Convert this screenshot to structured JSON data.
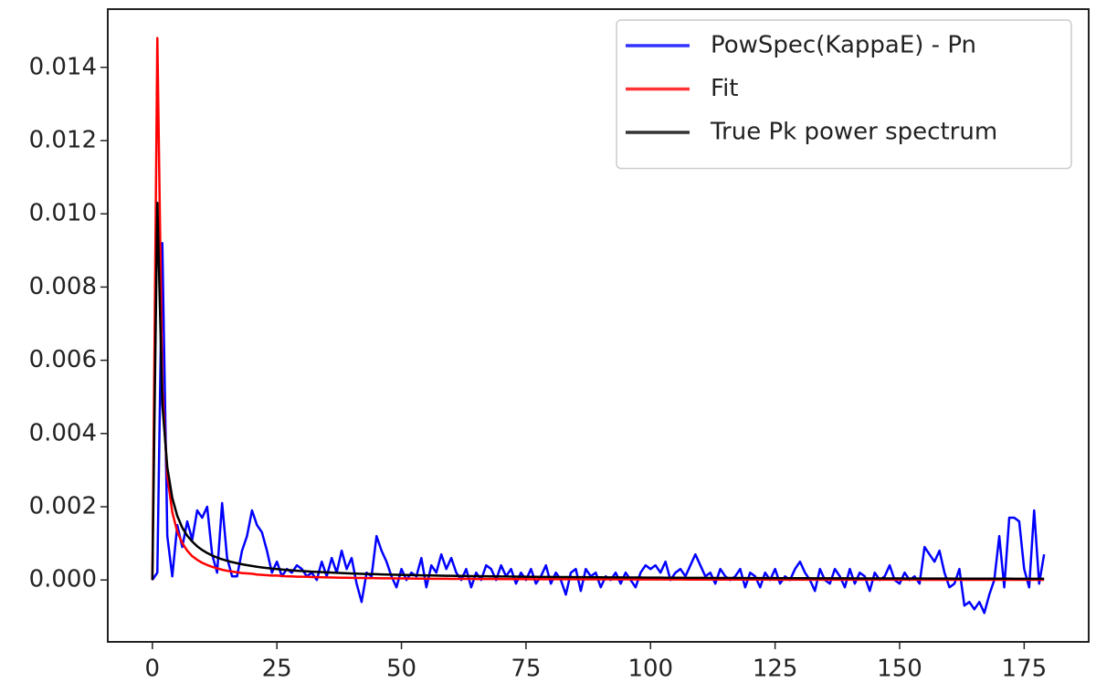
{
  "chart_data": {
    "type": "line",
    "x": [
      0,
      1,
      2,
      3,
      4,
      5,
      6,
      7,
      8,
      9,
      10,
      11,
      12,
      13,
      14,
      15,
      16,
      17,
      18,
      19,
      20,
      21,
      22,
      23,
      24,
      25,
      26,
      27,
      28,
      29,
      30,
      31,
      32,
      33,
      34,
      35,
      36,
      37,
      38,
      39,
      40,
      41,
      42,
      43,
      44,
      45,
      46,
      47,
      48,
      49,
      50,
      51,
      52,
      53,
      54,
      55,
      56,
      57,
      58,
      59,
      60,
      61,
      62,
      63,
      64,
      65,
      66,
      67,
      68,
      69,
      70,
      71,
      72,
      73,
      74,
      75,
      76,
      77,
      78,
      79,
      80,
      81,
      82,
      83,
      84,
      85,
      86,
      87,
      88,
      89,
      90,
      91,
      92,
      93,
      94,
      95,
      96,
      97,
      98,
      99,
      100,
      101,
      102,
      103,
      104,
      105,
      106,
      107,
      108,
      109,
      110,
      111,
      112,
      113,
      114,
      115,
      116,
      117,
      118,
      119,
      120,
      121,
      122,
      123,
      124,
      125,
      126,
      127,
      128,
      129,
      130,
      131,
      132,
      133,
      134,
      135,
      136,
      137,
      138,
      139,
      140,
      141,
      142,
      143,
      144,
      145,
      146,
      147,
      148,
      149,
      150,
      151,
      152,
      153,
      154,
      155,
      156,
      157,
      158,
      159,
      160,
      161,
      162,
      163,
      164,
      165,
      166,
      167,
      168,
      169,
      170,
      171,
      172,
      173,
      174,
      175,
      176,
      177,
      178,
      179
    ],
    "series": [
      {
        "name": "PowSpec(KappaE) - Pn",
        "color": "#0000ff",
        "values": [
          0,
          0.0002,
          0.0092,
          0.0012,
          0.0001,
          0.0015,
          0.0009,
          0.0016,
          0.0011,
          0.0019,
          0.0017,
          0.002,
          0.0007,
          0.0002,
          0.0021,
          0.0006,
          0.0001,
          0.0001,
          0.0008,
          0.0012,
          0.0019,
          0.0015,
          0.0013,
          0.0008,
          0.0002,
          0.0005,
          0.0001,
          0.0003,
          0.0002,
          0.0004,
          0.0003,
          0.0001,
          0.0002,
          0,
          0.0005,
          0.0001,
          0.0006,
          0.0002,
          0.0008,
          0.0003,
          0.0006,
          -0.0001,
          -0.0006,
          0.0002,
          0.0001,
          0.0012,
          0.0008,
          0.0005,
          0.0001,
          -0.0002,
          0.0003,
          0,
          0.0002,
          0.0001,
          0.0006,
          -0.0002,
          0.0004,
          0.0002,
          0.0007,
          0.0003,
          0.0006,
          0.0002,
          0,
          0.0003,
          -0.0002,
          0.0002,
          0,
          0.0004,
          0.0003,
          0,
          0.0004,
          0.0001,
          0.0003,
          -0.0001,
          0.0002,
          0,
          0.0003,
          -0.0001,
          0.0001,
          0.0004,
          -0.0001,
          0.0002,
          0,
          -0.0004,
          0.0002,
          0.0003,
          -0.0003,
          0.0003,
          0.0001,
          0.0002,
          -0.0002,
          0.0001,
          0,
          0.0002,
          -0.0001,
          0.0002,
          0,
          -0.0002,
          0.0002,
          0.0004,
          0.0003,
          0.0004,
          0.0002,
          0.0005,
          0,
          0.0002,
          0.0003,
          0.0001,
          0.0004,
          0.0007,
          0.0004,
          0.0001,
          0.0002,
          -0.0001,
          0.0003,
          0.0001,
          0,
          0.0001,
          0.0003,
          -0.0002,
          0.0002,
          0.0001,
          -0.0002,
          0.0002,
          0,
          0.0003,
          -0.0001,
          0.0001,
          0,
          0.0003,
          0.0005,
          0.0002,
          0,
          -0.0003,
          0.0003,
          0,
          -0.0001,
          0.0003,
          0.0001,
          -0.0002,
          0.0003,
          -0.0001,
          0.0002,
          0.0001,
          -0.0003,
          0.0002,
          0,
          0.0001,
          0.0004,
          0,
          -0.0001,
          0.0002,
          0,
          0.0001,
          -0.0001,
          0.0009,
          0.0007,
          0.0005,
          0.0008,
          0.0002,
          -0.0002,
          -0.0001,
          0.0003,
          -0.0007,
          -0.0006,
          -0.0008,
          -0.0006,
          -0.0009,
          -0.0004,
          0,
          0.0012,
          -0.0002,
          0.0017,
          0.0017,
          0.0016,
          0.0003,
          -0.0002,
          0.0019,
          -0.0001,
          0.0007
        ]
      },
      {
        "name": "Fit",
        "color": "#ff0000",
        "values": [
          0,
          0.0148,
          0.00523,
          0.00285,
          0.00185,
          0.00132,
          0.00101,
          0.0008,
          0.00065,
          0.00055,
          0.00047,
          0.00041,
          0.00036,
          0.00032,
          0.00028,
          0.00025,
          0.00023,
          0.00021,
          0.00019,
          0.00018,
          0.00017,
          0.00015,
          0.00014,
          0.00013,
          0.00012,
          0.00012,
          0.00011,
          0.0001,
          0.0001,
          9e-05,
          9e-05,
          8.6e-05,
          8.2e-05,
          7.8e-05,
          7.5e-05,
          7.1e-05,
          6.9e-05,
          6.6e-05,
          6.3e-05,
          6.1e-05,
          5.9e-05,
          5.6e-05,
          5.4e-05,
          5.2e-05,
          5.1e-05,
          4.9e-05,
          4.7e-05,
          4.6e-05,
          4.5e-05,
          4.3e-05,
          4.2e-05,
          4.1e-05,
          4e-05,
          3.8e-05,
          3.7e-05,
          3.6e-05,
          3.5e-05,
          3.4e-05,
          3.4e-05,
          3.3e-05,
          3.2e-05,
          3.1e-05,
          3e-05,
          3e-05,
          2.9e-05,
          2.8e-05,
          2.8e-05,
          2.7e-05,
          2.6e-05,
          2.6e-05,
          2.5e-05,
          2.5e-05,
          2.4e-05,
          2.4e-05,
          2.3e-05,
          2.3e-05,
          2.2e-05,
          2.2e-05,
          2.1e-05,
          2.1e-05,
          2.1e-05,
          2e-05,
          2e-05,
          2e-05,
          2e-05,
          2e-05,
          1.9e-05,
          1.9e-05,
          1.9e-05,
          1.9e-05,
          1.9e-05,
          1.8e-05,
          1.8e-05,
          1.8e-05,
          1.7e-05,
          1.7e-05,
          1.7e-05,
          1.6e-05,
          1.6e-05,
          1.5e-05,
          1.5e-05,
          1.5e-05,
          1.5e-05,
          1.4e-05,
          1.4e-05,
          1.4e-05,
          1.4e-05,
          1.3e-05,
          1.3e-05,
          1.3e-05,
          1.3e-05,
          1.3e-05,
          1.2e-05,
          1.2e-05,
          1.2e-05,
          1.2e-05,
          1.2e-05,
          1.1e-05,
          1.1e-05,
          1.1e-05,
          1.1e-05,
          1.1e-05,
          1.1e-05,
          1.1e-05,
          1.1e-05,
          1e-05,
          1e-05,
          1e-05,
          1e-05,
          1e-05,
          1e-05,
          1e-05,
          1e-05,
          1e-05,
          9e-06,
          9e-06,
          9e-06,
          9e-06,
          9e-06,
          9e-06,
          9e-06,
          9e-06,
          9e-06,
          9e-06,
          8e-06,
          8e-06,
          8e-06,
          8e-06,
          8e-06,
          8e-06,
          8e-06,
          8e-06,
          8e-06,
          8e-06,
          8e-06,
          7e-06,
          7e-06,
          7e-06,
          7e-06,
          7e-06,
          7e-06,
          7e-06,
          7e-06,
          7e-06,
          7e-06,
          7e-06,
          7e-06,
          6e-06,
          6e-06,
          6e-06,
          6e-06,
          6e-06,
          6e-06,
          6e-06,
          6e-06,
          6e-06,
          6e-06,
          6e-06,
          6e-06,
          6e-06
        ]
      },
      {
        "name": "True Pk power spectrum",
        "color": "#000000",
        "values": [
          0,
          0.0103,
          0.0048,
          0.00308,
          0.00224,
          0.00175,
          0.00143,
          0.00121,
          0.00105,
          0.00092,
          0.00082,
          0.000737,
          0.00067,
          0.000613,
          0.000566,
          0.000524,
          0.000488,
          0.000457,
          0.000429,
          0.000404,
          0.000382,
          0.000361,
          0.000343,
          0.000327,
          0.000312,
          0.000299,
          0.000286,
          0.000274,
          0.000263,
          0.000253,
          0.000244,
          0.000236,
          0.000228,
          0.000221,
          0.000214,
          0.000207,
          0.000201,
          0.000195,
          0.00019,
          0.000184,
          0.000178,
          0.000174,
          0.000169,
          0.000165,
          0.000161,
          0.000157,
          0.000153,
          0.000149,
          0.000146,
          0.000142,
          0.000139,
          0.000136,
          0.000133,
          0.00013,
          0.000128,
          0.000125,
          0.000123,
          0.00012,
          0.000118,
          0.000116,
          0.000114,
          0.000112,
          0.00011,
          0.000108,
          0.000106,
          0.000104,
          0.000103,
          0.000101,
          9.9e-05,
          9.8e-05,
          9.6e-05,
          9.5e-05,
          9.3e-05,
          9.2e-05,
          9e-05,
          8.9e-05,
          8.8e-05,
          8.7e-05,
          8.5e-05,
          8.4e-05,
          8.3e-05,
          8.2e-05,
          8.1e-05,
          8e-05,
          7.9e-05,
          7.8e-05,
          7.7e-05,
          7.6e-05,
          7.5e-05,
          7.4e-05,
          7.3e-05,
          7.2e-05,
          7.1e-05,
          7.1e-05,
          7e-05,
          6.9e-05,
          6.8e-05,
          6.7e-05,
          6.7e-05,
          6.6e-05,
          6.5e-05,
          6.4e-05,
          6.4e-05,
          6.3e-05,
          6.2e-05,
          6.2e-05,
          6.1e-05,
          6e-05,
          6e-05,
          5.9e-05,
          5.8e-05,
          5.8e-05,
          5.7e-05,
          5.7e-05,
          5.6e-05,
          5.6e-05,
          5.5e-05,
          5.4e-05,
          5.4e-05,
          5.3e-05,
          5.3e-05,
          5.3e-05,
          5.2e-05,
          5.2e-05,
          5.1e-05,
          5.1e-05,
          5e-05,
          5e-05,
          4.9e-05,
          4.9e-05,
          4.9e-05,
          4.8e-05,
          4.8e-05,
          4.7e-05,
          4.7e-05,
          4.7e-05,
          4.6e-05,
          4.6e-05,
          4.5e-05,
          4.5e-05,
          4.5e-05,
          4.4e-05,
          4.4e-05,
          4.4e-05,
          4.3e-05,
          4.3e-05,
          4.3e-05,
          4.2e-05,
          4.2e-05,
          4.2e-05,
          4.2e-05,
          4.1e-05,
          4.1e-05,
          4.1e-05,
          4e-05,
          4e-05,
          4e-05,
          4e-05,
          3.9e-05,
          3.9e-05,
          3.9e-05,
          3.8e-05,
          3.8e-05,
          3.8e-05,
          3.8e-05,
          3.7e-05,
          3.7e-05,
          3.7e-05,
          3.7e-05,
          3.6e-05,
          3.6e-05,
          3.6e-05,
          3.6e-05,
          3.5e-05,
          3.5e-05,
          3.5e-05,
          3.5e-05,
          3.5e-05,
          3.4e-05,
          3.4e-05
        ]
      }
    ],
    "xlim": [
      -8.95,
      187.95
    ],
    "ylim": [
      -0.00169,
      0.01559
    ],
    "xticks": [
      0,
      25,
      50,
      75,
      100,
      125,
      150,
      175
    ],
    "yticks": [
      {
        "value": 0,
        "label": "0.000"
      },
      {
        "value": 0.002,
        "label": "0.002"
      },
      {
        "value": 0.004,
        "label": "0.004"
      },
      {
        "value": 0.006,
        "label": "0.006"
      },
      {
        "value": 0.008,
        "label": "0.008"
      },
      {
        "value": 0.01,
        "label": "0.010"
      },
      {
        "value": 0.012,
        "label": "0.012"
      },
      {
        "value": 0.014,
        "label": "0.014"
      }
    ],
    "grid": false,
    "legend": "upper right"
  }
}
